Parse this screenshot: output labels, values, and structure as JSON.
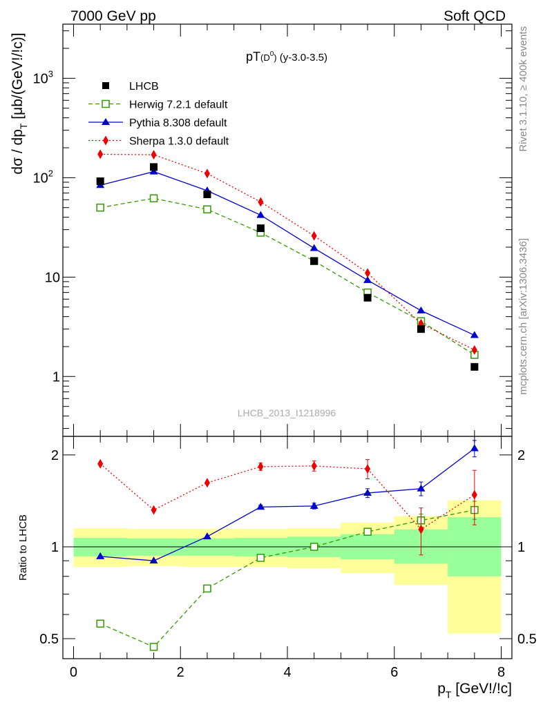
{
  "header": {
    "left": "7000 GeV pp",
    "right": "Soft QCD"
  },
  "side_labels": {
    "rivet": "Rivet 3.1.10, ≥ 400k events",
    "mcplots": "mcplots.cern.ch [arXiv:1306.3436]"
  },
  "watermark": "LHCB_2013_I1218996",
  "chart_data": {
    "type": "line",
    "title": {
      "main": "pT",
      "sub": "(D",
      "sup": "0",
      "close": ")",
      "extra": " (y-3.0-3.5)"
    },
    "xlabel": {
      "main": "p",
      "sub": "T",
      "unit": " [GeV!/!c]"
    },
    "ylabel": {
      "pre": "dσ / dp",
      "sub": "T",
      "post": " [μb/(GeV!/!c)]"
    },
    "ratio_ylabel": "Ratio to LHCB",
    "xlim": [
      -0.2,
      8.2
    ],
    "xticks": [
      "0",
      "2",
      "4",
      "6",
      "8"
    ],
    "xtick_values": [
      0,
      2,
      4,
      6,
      8
    ],
    "ylim": [
      0.25,
      3500
    ],
    "log_y": true,
    "yticks": [
      "1",
      "10",
      "10",
      "10"
    ],
    "ytick_sups": [
      "",
      "",
      "2",
      "3"
    ],
    "ytick_values": [
      1,
      10,
      100,
      1000
    ],
    "ratio_ylim": [
      0.43,
      2.3
    ],
    "ratio_yticks": [
      "0.5",
      "1",
      "2"
    ],
    "ratio_ytick_values": [
      0.5,
      1,
      2
    ],
    "bin_edges": [
      0,
      1,
      2,
      3,
      4,
      5,
      6,
      7,
      8
    ],
    "x": [
      0.5,
      1.5,
      2.5,
      3.5,
      4.5,
      5.5,
      6.5,
      7.5
    ],
    "data": {
      "name": "LHCB",
      "color": "#000000",
      "values": [
        92,
        128,
        68,
        31,
        14.5,
        6.2,
        3.0,
        1.25
      ]
    },
    "series": [
      {
        "name": "Herwig 7.2.1 default",
        "color": "#339900",
        "marker": "open-square",
        "dash": "6,4",
        "values": [
          50,
          62,
          48,
          28,
          14.5,
          7.0,
          3.6,
          1.65
        ],
        "ratio": [
          0.56,
          0.47,
          0.73,
          0.92,
          1.0,
          1.12,
          1.22,
          1.32
        ],
        "ratio_err": [
          0,
          0,
          0,
          0,
          0,
          0.03,
          0.06,
          0.09
        ]
      },
      {
        "name": "Pythia 8.308 default",
        "color": "#0000cc",
        "marker": "triangle",
        "dash": "",
        "values": [
          84,
          115,
          74,
          42,
          19.5,
          9.3,
          4.6,
          2.6
        ],
        "ratio": [
          0.93,
          0.9,
          1.08,
          1.35,
          1.36,
          1.5,
          1.55,
          2.1
        ],
        "ratio_err": [
          0,
          0,
          0,
          0.02,
          0.03,
          0.05,
          0.08,
          0.13
        ]
      },
      {
        "name": "Sherpa 1.3.0 default",
        "color": "#ee0000",
        "marker": "diamond",
        "dash": "2,3",
        "values": [
          172,
          170,
          110,
          57,
          26,
          11,
          3.4,
          1.85
        ],
        "ratio": [
          1.87,
          1.32,
          1.62,
          1.83,
          1.84,
          1.8,
          1.14,
          1.48
        ],
        "ratio_err": [
          0,
          0,
          0,
          0.05,
          0.07,
          0.13,
          0.2,
          0.3
        ]
      }
    ],
    "bands": {
      "stat": {
        "color": "#99ff99",
        "lo": [
          0.93,
          0.935,
          0.935,
          0.93,
          0.925,
          0.91,
          0.88,
          0.8
        ],
        "hi": [
          1.07,
          1.065,
          1.065,
          1.07,
          1.08,
          1.1,
          1.14,
          1.25
        ]
      },
      "total": {
        "color": "#ffff99",
        "lo": [
          0.86,
          0.865,
          0.86,
          0.86,
          0.85,
          0.82,
          0.75,
          0.52
        ],
        "hi": [
          1.15,
          1.145,
          1.145,
          1.145,
          1.15,
          1.2,
          1.26,
          1.42
        ]
      }
    },
    "legend_position": "top-left"
  }
}
